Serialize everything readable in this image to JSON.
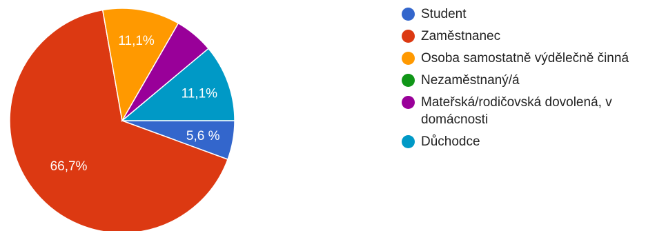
{
  "chart_data": {
    "type": "pie",
    "categories": [
      "Student",
      "Zaměstnanec",
      "Osoba samostatně výdělečně činná",
      "Nezaměstnaný/á",
      "Mateřská/rodičovská dovolená, v domácnosti",
      "Důchodce"
    ],
    "values": [
      5.6,
      66.7,
      11.1,
      0,
      5.6,
      11.1
    ],
    "slice_labels": [
      "5,6 %",
      "66,7%",
      "11,1%",
      "",
      "",
      "11,1%"
    ],
    "colors": [
      "#3366cc",
      "#dc3912",
      "#ff9900",
      "#109618",
      "#990099",
      "#0099c6"
    ],
    "start": "3 o'clock, clockwise",
    "legend_position": "right"
  }
}
